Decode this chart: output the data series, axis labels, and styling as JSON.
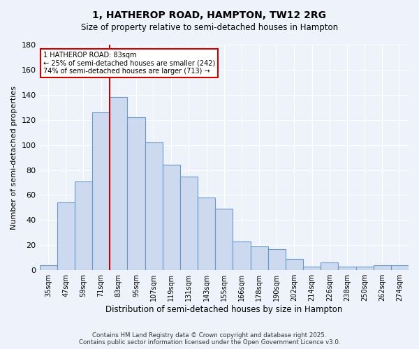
{
  "title_line1": "1, HATHEROP ROAD, HAMPTON, TW12 2RG",
  "title_line2": "Size of property relative to semi-detached houses in Hampton",
  "xlabel": "Distribution of semi-detached houses by size in Hampton",
  "ylabel": "Number of semi-detached properties",
  "categories": [
    "35sqm",
    "47sqm",
    "59sqm",
    "71sqm",
    "83sqm",
    "95sqm",
    "107sqm",
    "119sqm",
    "131sqm",
    "143sqm",
    "155sqm",
    "166sqm",
    "178sqm",
    "190sqm",
    "202sqm",
    "214sqm",
    "226sqm",
    "238sqm",
    "250sqm",
    "262sqm",
    "274sqm"
  ],
  "values": [
    4,
    54,
    71,
    126,
    138,
    122,
    102,
    84,
    75,
    58,
    49,
    23,
    19,
    17,
    9,
    3,
    6,
    3,
    3,
    4,
    4
  ],
  "bar_color": "#ccd9ee",
  "bar_edge_color": "#6699cc",
  "red_line_index": 4,
  "annotation_title": "1 HATHEROP ROAD: 83sqm",
  "annotation_line1": "← 25% of semi-detached houses are smaller (242)",
  "annotation_line2": "74% of semi-detached houses are larger (713) →",
  "annotation_box_color": "#ffffff",
  "annotation_box_edge": "#cc0000",
  "red_line_color": "#cc0000",
  "ylim": [
    0,
    180
  ],
  "yticks": [
    0,
    20,
    40,
    60,
    80,
    100,
    120,
    140,
    160,
    180
  ],
  "background_color": "#eef2fa",
  "grid_color": "#ffffff",
  "footnote_line1": "Contains HM Land Registry data © Crown copyright and database right 2025.",
  "footnote_line2": "Contains public sector information licensed under the Open Government Licence v3.0."
}
